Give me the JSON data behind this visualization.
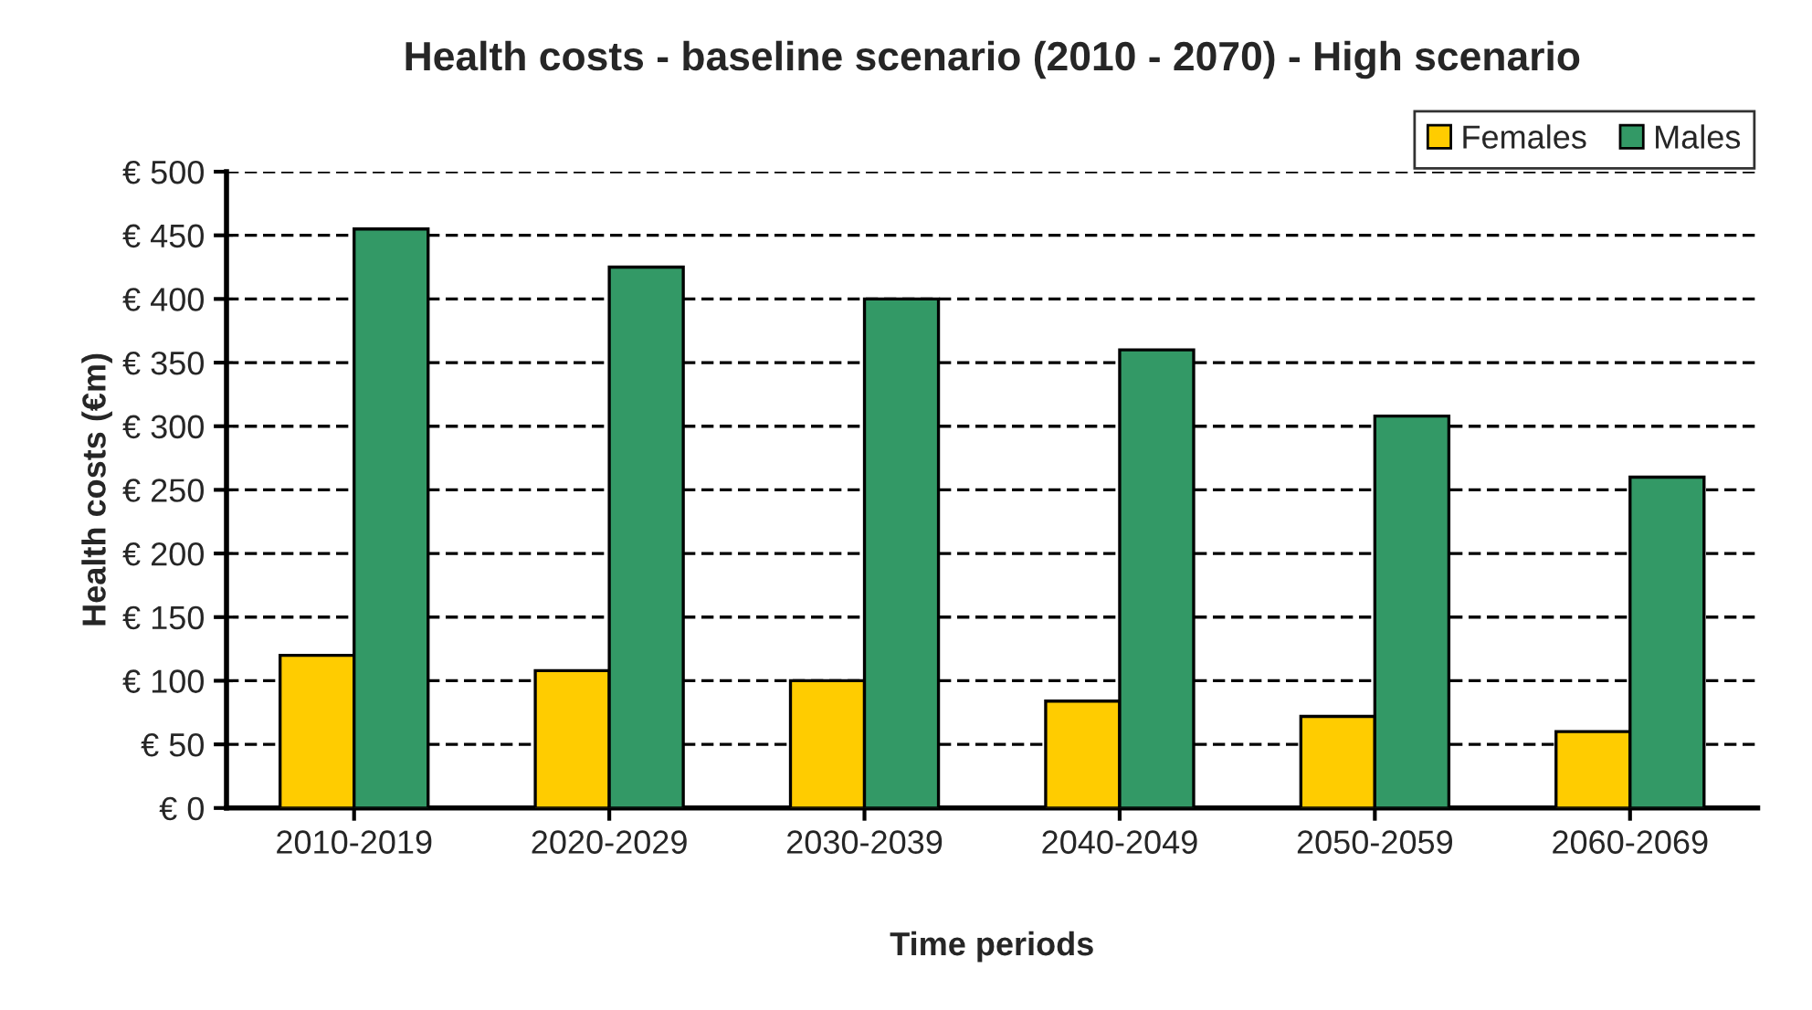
{
  "chart_data": {
    "type": "bar",
    "title": "Health costs - baseline scenario (2010 - 2070) - High scenario",
    "xlabel": "Time periods",
    "ylabel": "Health costs (€m)",
    "categories": [
      "2010-2019",
      "2020-2029",
      "2030-2039",
      "2040-2049",
      "2050-2059",
      "2060-2069"
    ],
    "series": [
      {
        "name": "Females",
        "color": "#ffcc00",
        "values": [
          120,
          108,
          100,
          84,
          72,
          60
        ]
      },
      {
        "name": "Males",
        "color": "#339966",
        "values": [
          455,
          425,
          400,
          360,
          308,
          260
        ]
      }
    ],
    "ylim": [
      0,
      500
    ],
    "yticks": [
      {
        "value": 0,
        "label": "€ 0"
      },
      {
        "value": 50,
        "label": "€ 50"
      },
      {
        "value": 100,
        "label": "€ 100"
      },
      {
        "value": 150,
        "label": "€ 150"
      },
      {
        "value": 200,
        "label": "€ 200"
      },
      {
        "value": 250,
        "label": "€ 250"
      },
      {
        "value": 300,
        "label": "€ 300"
      },
      {
        "value": 350,
        "label": "€ 350"
      },
      {
        "value": 400,
        "label": "€ 400"
      },
      {
        "value": 450,
        "label": "€ 450"
      },
      {
        "value": 500,
        "label": "€ 500"
      }
    ],
    "grid": "y",
    "line_style": "dashed",
    "legend": "top right"
  }
}
